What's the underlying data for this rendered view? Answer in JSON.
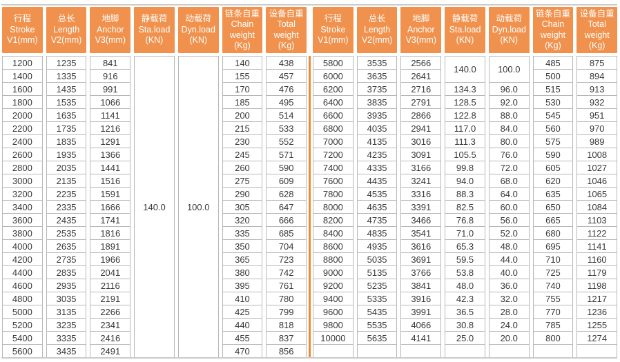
{
  "colors": {
    "header_bg": "#F0924E",
    "divider": "#ED8A2F",
    "cell_border": "#B7B7B7",
    "frame_line": "#CBCBCB",
    "cell_text": "#383838",
    "header_text": "#FFFFFF"
  },
  "column_keys": [
    "stroke",
    "length",
    "anchor",
    "sta_load",
    "dyn_load",
    "chain_weight",
    "total_weight"
  ],
  "column_headers": [
    {
      "lines": [
        "行程",
        "Stroke",
        "V1(mm)"
      ]
    },
    {
      "lines": [
        "总长",
        "Length",
        "V2(mm)"
      ]
    },
    {
      "lines": [
        "地脚",
        "Anchor",
        "V3(mm)"
      ]
    },
    {
      "lines": [
        "静载荷",
        "Sta.load",
        "(KN)"
      ]
    },
    {
      "lines": [
        "动载荷",
        "Dyn.load",
        "(KN)"
      ]
    },
    {
      "lines": [
        "链条自重",
        "Chain",
        "weight",
        "(Kg)"
      ]
    },
    {
      "lines": [
        "设备自重",
        "Total",
        "weight",
        "(Kg)"
      ]
    }
  ],
  "left_table": {
    "columns": {
      "stroke": [
        "1200",
        "1400",
        "1600",
        "1800",
        "2000",
        "2200",
        "2400",
        "2600",
        "2800",
        "3000",
        "3200",
        "3400",
        "3600",
        "3800",
        "4000",
        "4200",
        "4400",
        "4600",
        "4800",
        "5000",
        "5200",
        "5400",
        "5600"
      ],
      "length": [
        "1235",
        "1335",
        "1435",
        "1535",
        "1635",
        "1735",
        "1835",
        "1935",
        "2035",
        "2135",
        "2235",
        "2335",
        "2435",
        "2535",
        "2635",
        "2735",
        "2835",
        "2935",
        "3035",
        "3135",
        "3235",
        "3335",
        "3435"
      ],
      "anchor": [
        "841",
        "916",
        "991",
        "1066",
        "1141",
        "1216",
        "1291",
        "1366",
        "1441",
        "1516",
        "1591",
        "1666",
        "1741",
        "1816",
        "1891",
        "1966",
        "2041",
        "2116",
        "2191",
        "2266",
        "2341",
        "2416",
        "2491"
      ],
      "sta_load": [
        {
          "v": "140.0",
          "span": 23
        }
      ],
      "dyn_load": [
        {
          "v": "100.0",
          "span": 23
        }
      ],
      "chain_weight": [
        "140",
        "155",
        "170",
        "185",
        "200",
        "215",
        "230",
        "245",
        "260",
        "275",
        "290",
        "305",
        "320",
        "335",
        "350",
        "365",
        "380",
        "395",
        "410",
        "425",
        "440",
        "455",
        "470"
      ],
      "total_weight": [
        "438",
        "457",
        "476",
        "495",
        "514",
        "533",
        "552",
        "571",
        "590",
        "609",
        "628",
        "647",
        "666",
        "685",
        "704",
        "723",
        "742",
        "761",
        "780",
        "799",
        "818",
        "837",
        "856"
      ]
    }
  },
  "right_table": {
    "columns": {
      "stroke": [
        "5800",
        "6000",
        "6200",
        "6400",
        "6600",
        "6800",
        "7000",
        "7200",
        "7400",
        "7600",
        "7800",
        "8000",
        "8200",
        "8400",
        "8600",
        "8800",
        "9000",
        "9200",
        "9400",
        "9600",
        "9800",
        "10000",
        ""
      ],
      "length": [
        "3535",
        "3635",
        "3735",
        "3835",
        "3935",
        "4035",
        "4135",
        "4235",
        "4335",
        "4435",
        "4535",
        "4635",
        "4735",
        "4835",
        "4935",
        "5035",
        "5135",
        "5235",
        "5335",
        "5435",
        "5535",
        "5635",
        ""
      ],
      "anchor": [
        "2566",
        "2641",
        "2716",
        "2791",
        "2866",
        "2941",
        "3016",
        "3091",
        "3166",
        "3241",
        "3316",
        "3391",
        "3466",
        "3541",
        "3616",
        "3691",
        "3766",
        "3841",
        "3916",
        "3991",
        "4066",
        "4141",
        ""
      ],
      "sta_load": [
        {
          "v": "140.0",
          "span": 2
        },
        "134.3",
        "128.5",
        "122.8",
        "117.0",
        "111.3",
        "105.5",
        "99.8",
        "94.0",
        "88.3",
        "82.5",
        "76.8",
        "71.0",
        "65.3",
        "59.5",
        "53.8",
        "48.0",
        "42.3",
        "36.5",
        "30.8",
        "25.0",
        ""
      ],
      "dyn_load": [
        {
          "v": "100.0",
          "span": 2
        },
        "96.0",
        "92.0",
        "88.0",
        "84.0",
        "80.0",
        "76.0",
        "72.0",
        "68.0",
        "64.0",
        "60.0",
        "56.0",
        "52.0",
        "48.0",
        "44.0",
        "40.0",
        "36.0",
        "32.0",
        "28.0",
        "24.0",
        "20.0",
        ""
      ],
      "chain_weight": [
        "485",
        "500",
        "515",
        "530",
        "545",
        "560",
        "575",
        "590",
        "605",
        "620",
        "635",
        "650",
        "665",
        "680",
        "695",
        "710",
        "725",
        "740",
        "755",
        "770",
        "785",
        "800",
        ""
      ],
      "total_weight": [
        "875",
        "894",
        "913",
        "932",
        "951",
        "970",
        "989",
        "1008",
        "1027",
        "1046",
        "1065",
        "1084",
        "1103",
        "1122",
        "1141",
        "1160",
        "1179",
        "1198",
        "1217",
        "1236",
        "1255",
        "1274",
        ""
      ]
    }
  }
}
